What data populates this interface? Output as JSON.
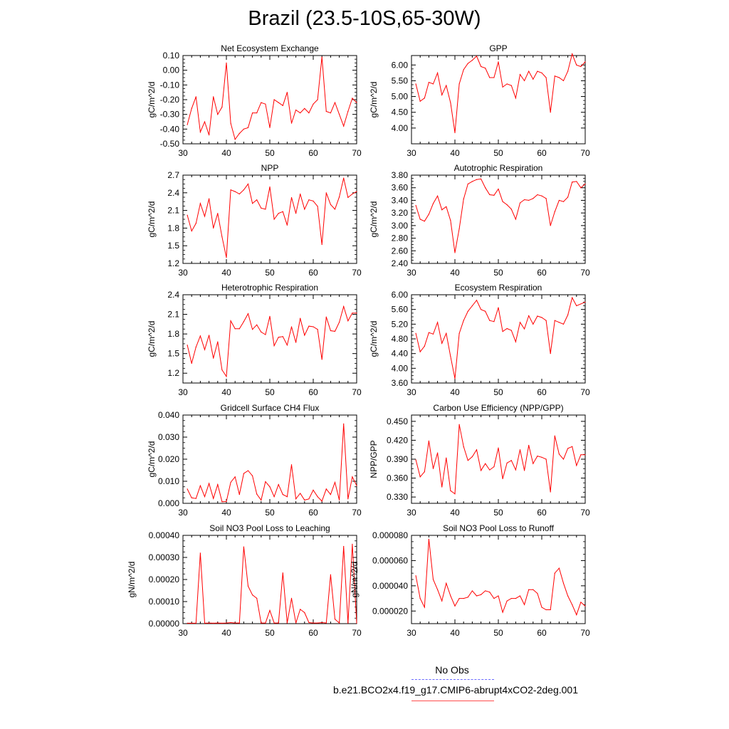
{
  "title": "Brazil (23.5-10S,65-30W)",
  "legend": {
    "obs_label": "No Obs",
    "model_label": "b.e21.BCO2x4.f19_g17.CMIP6-abrupt4xCO2-2deg.001",
    "obs_color": "#6a6aff",
    "model_color": "#ff0000"
  },
  "chart_data": [
    {
      "type": "line",
      "title": "Net Ecosystem Exchange",
      "ylabel": "gC/m^2/d",
      "xlim": [
        30,
        70
      ],
      "ylim": [
        -0.5,
        0.1
      ],
      "yticks": [
        -0.5,
        -0.4,
        -0.3,
        -0.2,
        -0.1,
        0.0,
        0.1
      ],
      "ytick_labels": [
        "-0.50",
        "-0.40",
        "-0.30",
        "-0.20",
        "-0.10",
        "0.00",
        "0.10"
      ],
      "xticks": [
        30,
        40,
        50,
        60,
        70
      ],
      "xtick_labels": [
        "30",
        "40",
        "50",
        "60",
        "70"
      ],
      "x": [
        31,
        32,
        33,
        34,
        35,
        36,
        37,
        38,
        39,
        40,
        41,
        42,
        43,
        44,
        45,
        46,
        47,
        48,
        49,
        50,
        51,
        52,
        53,
        54,
        55,
        56,
        57,
        58,
        59,
        60,
        61,
        62,
        63,
        64,
        65,
        66,
        67,
        68,
        69,
        70
      ],
      "y": [
        -0.37,
        -0.26,
        -0.18,
        -0.42,
        -0.35,
        -0.44,
        -0.18,
        -0.3,
        -0.25,
        0.05,
        -0.36,
        -0.47,
        -0.43,
        -0.4,
        -0.39,
        -0.29,
        -0.29,
        -0.22,
        -0.23,
        -0.39,
        -0.2,
        -0.22,
        -0.24,
        -0.15,
        -0.36,
        -0.27,
        -0.29,
        -0.26,
        -0.29,
        -0.23,
        -0.2,
        0.09,
        -0.28,
        -0.29,
        -0.22,
        -0.3,
        -0.38,
        -0.28,
        -0.19,
        -0.22
      ]
    },
    {
      "type": "line",
      "title": "GPP",
      "ylabel": "gC/m^2/d",
      "xlim": [
        30,
        70
      ],
      "ylim": [
        3.5,
        6.3
      ],
      "yticks": [
        4.0,
        4.5,
        5.0,
        5.5,
        6.0
      ],
      "ytick_labels": [
        "4.00",
        "4.50",
        "5.00",
        "5.50",
        "6.00"
      ],
      "xticks": [
        30,
        40,
        50,
        60,
        70
      ],
      "xtick_labels": [
        "30",
        "40",
        "50",
        "60",
        "70"
      ],
      "x": [
        31,
        32,
        33,
        34,
        35,
        36,
        37,
        38,
        39,
        40,
        41,
        42,
        43,
        44,
        45,
        46,
        47,
        48,
        49,
        50,
        51,
        52,
        53,
        54,
        55,
        56,
        57,
        58,
        59,
        60,
        61,
        62,
        63,
        64,
        65,
        66,
        67,
        68,
        69,
        70
      ],
      "y": [
        5.4,
        4.85,
        4.95,
        5.45,
        5.4,
        5.75,
        5.05,
        5.35,
        4.8,
        3.85,
        5.4,
        5.85,
        6.05,
        6.15,
        6.28,
        5.95,
        5.9,
        5.6,
        5.6,
        6.1,
        5.3,
        5.4,
        5.35,
        4.95,
        5.7,
        5.5,
        5.8,
        5.55,
        5.8,
        5.75,
        5.6,
        4.5,
        5.65,
        5.6,
        5.5,
        5.8,
        6.35,
        6.0,
        5.95,
        6.1
      ]
    },
    {
      "type": "line",
      "title": "NPP",
      "ylabel": "gC/m^2/d",
      "xlim": [
        30,
        70
      ],
      "ylim": [
        1.2,
        2.7
      ],
      "yticks": [
        1.2,
        1.5,
        1.8,
        2.1,
        2.4,
        2.7
      ],
      "ytick_labels": [
        "1.2",
        "1.5",
        "1.8",
        "2.1",
        "2.4",
        "2.7"
      ],
      "xticks": [
        30,
        40,
        50,
        60,
        70
      ],
      "xtick_labels": [
        "30",
        "40",
        "50",
        "60",
        "70"
      ],
      "x": [
        31,
        32,
        33,
        34,
        35,
        36,
        37,
        38,
        39,
        40,
        41,
        42,
        43,
        44,
        45,
        46,
        47,
        48,
        49,
        50,
        51,
        52,
        53,
        54,
        55,
        56,
        57,
        58,
        59,
        60,
        61,
        62,
        63,
        64,
        65,
        66,
        67,
        68,
        69,
        70
      ],
      "y": [
        2.02,
        1.75,
        1.88,
        2.22,
        2.0,
        2.3,
        1.8,
        2.05,
        1.65,
        1.3,
        2.45,
        2.42,
        2.38,
        2.45,
        2.55,
        2.22,
        2.28,
        2.14,
        2.12,
        2.5,
        1.95,
        2.05,
        2.08,
        1.85,
        2.32,
        2.05,
        2.38,
        2.12,
        2.28,
        2.26,
        2.17,
        1.52,
        2.4,
        2.2,
        2.12,
        2.33,
        2.65,
        2.32,
        2.38,
        2.42
      ]
    },
    {
      "type": "line",
      "title": "Autotrophic Respiration",
      "ylabel": "gC/m^2/d",
      "xlim": [
        30,
        70
      ],
      "ylim": [
        2.4,
        3.8
      ],
      "yticks": [
        2.4,
        2.6,
        2.8,
        3.0,
        3.2,
        3.4,
        3.6,
        3.8
      ],
      "ytick_labels": [
        "2.40",
        "2.60",
        "2.80",
        "3.00",
        "3.20",
        "3.40",
        "3.60",
        "3.80"
      ],
      "xticks": [
        30,
        40,
        50,
        60,
        70
      ],
      "xtick_labels": [
        "30",
        "40",
        "50",
        "60",
        "70"
      ],
      "x": [
        31,
        32,
        33,
        34,
        35,
        36,
        37,
        38,
        39,
        40,
        41,
        42,
        43,
        44,
        45,
        46,
        47,
        48,
        49,
        50,
        51,
        52,
        53,
        54,
        55,
        56,
        57,
        58,
        59,
        60,
        61,
        62,
        63,
        64,
        65,
        66,
        67,
        68,
        69,
        70
      ],
      "y": [
        3.32,
        3.1,
        3.07,
        3.18,
        3.35,
        3.47,
        3.25,
        3.3,
        3.08,
        2.57,
        2.95,
        3.42,
        3.66,
        3.7,
        3.73,
        3.74,
        3.6,
        3.49,
        3.48,
        3.58,
        3.38,
        3.33,
        3.26,
        3.1,
        3.36,
        3.41,
        3.4,
        3.43,
        3.49,
        3.47,
        3.43,
        3.0,
        3.22,
        3.4,
        3.38,
        3.45,
        3.69,
        3.7,
        3.6,
        3.66
      ]
    },
    {
      "type": "line",
      "title": "Heterotrophic Respiration",
      "ylabel": "gC/m^2/d",
      "xlim": [
        30,
        70
      ],
      "ylim": [
        1.05,
        2.4
      ],
      "yticks": [
        1.2,
        1.5,
        1.8,
        2.1,
        2.4
      ],
      "ytick_labels": [
        "1.2",
        "1.5",
        "1.8",
        "2.1",
        "2.4"
      ],
      "xticks": [
        30,
        40,
        50,
        60,
        70
      ],
      "xtick_labels": [
        "30",
        "40",
        "50",
        "60",
        "70"
      ],
      "x": [
        31,
        32,
        33,
        34,
        35,
        36,
        37,
        38,
        39,
        40,
        41,
        42,
        43,
        44,
        45,
        46,
        47,
        48,
        49,
        50,
        51,
        52,
        53,
        54,
        55,
        56,
        57,
        58,
        59,
        60,
        61,
        62,
        63,
        64,
        65,
        66,
        67,
        68,
        69,
        70
      ],
      "y": [
        1.63,
        1.35,
        1.6,
        1.77,
        1.56,
        1.78,
        1.43,
        1.68,
        1.25,
        1.15,
        2.0,
        1.88,
        1.88,
        1.99,
        2.11,
        1.87,
        1.94,
        1.83,
        1.79,
        2.07,
        1.62,
        1.75,
        1.76,
        1.63,
        1.91,
        1.67,
        2.04,
        1.78,
        1.92,
        1.91,
        1.87,
        1.41,
        2.06,
        1.85,
        1.84,
        1.98,
        2.22,
        2.0,
        2.12,
        2.12
      ]
    },
    {
      "type": "line",
      "title": "Ecosystem Respiration",
      "ylabel": "gC/m^2/d",
      "xlim": [
        30,
        70
      ],
      "ylim": [
        3.6,
        6.0
      ],
      "yticks": [
        3.6,
        4.0,
        4.4,
        4.8,
        5.2,
        5.6,
        6.0
      ],
      "ytick_labels": [
        "3.60",
        "4.00",
        "4.40",
        "4.80",
        "5.20",
        "5.60",
        "6.00"
      ],
      "xticks": [
        30,
        40,
        50,
        60,
        70
      ],
      "xtick_labels": [
        "30",
        "40",
        "50",
        "60",
        "70"
      ],
      "x": [
        31,
        32,
        33,
        34,
        35,
        36,
        37,
        38,
        39,
        40,
        41,
        42,
        43,
        44,
        45,
        46,
        47,
        48,
        49,
        50,
        51,
        52,
        53,
        54,
        55,
        56,
        57,
        58,
        59,
        60,
        61,
        62,
        63,
        64,
        65,
        66,
        67,
        68,
        69,
        70
      ],
      "y": [
        4.95,
        4.45,
        4.6,
        4.97,
        4.93,
        5.25,
        4.68,
        4.95,
        4.32,
        3.72,
        4.95,
        5.3,
        5.55,
        5.7,
        5.85,
        5.6,
        5.55,
        5.3,
        5.27,
        5.65,
        5.0,
        5.08,
        5.03,
        4.72,
        5.25,
        5.07,
        5.43,
        5.2,
        5.42,
        5.38,
        5.3,
        4.4,
        5.3,
        5.25,
        5.2,
        5.45,
        5.92,
        5.7,
        5.75,
        5.8
      ]
    },
    {
      "type": "line",
      "title": "Gridcell Surface CH4 Flux",
      "ylabel": "gC/m^2/d",
      "xlim": [
        30,
        70
      ],
      "ylim": [
        0.0,
        0.04
      ],
      "yticks": [
        0.0,
        0.01,
        0.02,
        0.03,
        0.04
      ],
      "ytick_labels": [
        "0.000",
        "0.010",
        "0.020",
        "0.030",
        "0.040"
      ],
      "xticks": [
        30,
        40,
        50,
        60,
        70
      ],
      "xtick_labels": [
        "30",
        "40",
        "50",
        "60",
        "70"
      ],
      "x": [
        31,
        32,
        33,
        34,
        35,
        36,
        37,
        38,
        39,
        40,
        41,
        42,
        43,
        44,
        45,
        46,
        47,
        48,
        49,
        50,
        51,
        52,
        53,
        54,
        55,
        56,
        57,
        58,
        59,
        60,
        61,
        62,
        63,
        64,
        65,
        66,
        67,
        68,
        69,
        70
      ],
      "y": [
        0.0065,
        0.0025,
        0.0022,
        0.008,
        0.003,
        0.009,
        0.0022,
        0.0085,
        0.0007,
        0.0008,
        0.0095,
        0.012,
        0.004,
        0.0135,
        0.0148,
        0.0125,
        0.0042,
        0.0015,
        0.0098,
        0.0075,
        0.003,
        0.0085,
        0.004,
        0.003,
        0.0175,
        0.002,
        0.0045,
        0.0015,
        0.002,
        0.006,
        0.003,
        0.001,
        0.0065,
        0.004,
        0.0095,
        0.0015,
        0.036,
        0.002,
        0.012,
        0.008
      ]
    },
    {
      "type": "line",
      "title": "Carbon Use Efficiency (NPP/GPP)",
      "ylabel": "NPP/GPP",
      "xlim": [
        30,
        70
      ],
      "ylim": [
        0.32,
        0.46
      ],
      "yticks": [
        0.33,
        0.36,
        0.39,
        0.42,
        0.45
      ],
      "ytick_labels": [
        "0.330",
        "0.360",
        "0.390",
        "0.420",
        "0.450"
      ],
      "xticks": [
        30,
        40,
        50,
        60,
        70
      ],
      "xtick_labels": [
        "30",
        "40",
        "50",
        "60",
        "70"
      ],
      "x": [
        31,
        32,
        33,
        34,
        35,
        36,
        37,
        38,
        39,
        40,
        41,
        42,
        43,
        44,
        45,
        46,
        47,
        48,
        49,
        50,
        51,
        52,
        53,
        54,
        55,
        56,
        57,
        58,
        59,
        60,
        61,
        62,
        63,
        64,
        65,
        66,
        67,
        68,
        69,
        70
      ],
      "y": [
        0.389,
        0.362,
        0.37,
        0.419,
        0.375,
        0.4,
        0.346,
        0.392,
        0.34,
        0.335,
        0.445,
        0.41,
        0.388,
        0.394,
        0.405,
        0.372,
        0.383,
        0.373,
        0.378,
        0.408,
        0.359,
        0.384,
        0.388,
        0.373,
        0.405,
        0.372,
        0.412,
        0.383,
        0.395,
        0.393,
        0.39,
        0.338,
        0.427,
        0.398,
        0.39,
        0.407,
        0.41,
        0.38,
        0.397,
        0.397
      ]
    },
    {
      "type": "line",
      "title": "Soil NO3 Pool Loss to Leaching",
      "ylabel": "gN/m^2/d",
      "xlim": [
        30,
        70
      ],
      "ylim": [
        0.0,
        0.0004
      ],
      "yticks": [
        0.0,
        0.0001,
        0.0002,
        0.0003,
        0.0004
      ],
      "ytick_labels": [
        "0.00000",
        "0.00010",
        "0.00020",
        "0.00030",
        "0.00040"
      ],
      "xticks": [
        30,
        40,
        50,
        60,
        70
      ],
      "xtick_labels": [
        "30",
        "40",
        "50",
        "60",
        "70"
      ],
      "x": [
        31,
        32,
        33,
        34,
        35,
        36,
        37,
        38,
        39,
        40,
        41,
        42,
        43,
        44,
        45,
        46,
        47,
        48,
        49,
        50,
        51,
        52,
        53,
        54,
        55,
        56,
        57,
        58,
        59,
        60,
        61,
        62,
        63,
        64,
        65,
        66,
        67,
        68,
        69,
        70
      ],
      "y": [
        2e-06,
        2e-06,
        2e-06,
        0.00032,
        2e-06,
        3e-06,
        2e-06,
        3e-06,
        2e-06,
        3e-06,
        5e-06,
        3e-06,
        3e-06,
        0.000348,
        0.00017,
        0.00013,
        0.000115,
        3e-06,
        3e-06,
        6e-05,
        3e-06,
        3e-06,
        0.00023,
        3e-06,
        0.000115,
        3e-06,
        6.5e-05,
        5e-05,
        5e-06,
        3e-06,
        3e-06,
        5e-06,
        3e-06,
        0.000222,
        2e-05,
        3e-06,
        0.00035,
        2e-06,
        0.00036,
        3e-06
      ]
    },
    {
      "type": "line",
      "title": "Soil NO3 Pool Loss to Runoff",
      "ylabel": "gN/m^2/d",
      "xlim": [
        30,
        70
      ],
      "ylim": [
        1e-05,
        8e-05
      ],
      "yticks": [
        2e-05,
        4e-05,
        6e-05,
        8e-05
      ],
      "ytick_labels": [
        "0.000020",
        "0.000040",
        "0.000060",
        "0.000080"
      ],
      "xticks": [
        30,
        40,
        50,
        60,
        70
      ],
      "xtick_labels": [
        "30",
        "40",
        "50",
        "60",
        "70"
      ],
      "x": [
        31,
        32,
        33,
        34,
        35,
        36,
        37,
        38,
        39,
        40,
        41,
        42,
        43,
        44,
        45,
        46,
        47,
        48,
        49,
        50,
        51,
        52,
        53,
        54,
        55,
        56,
        57,
        58,
        59,
        60,
        61,
        62,
        63,
        64,
        65,
        66,
        67,
        68,
        69,
        70
      ],
      "y": [
        4.8e-05,
        3e-05,
        2.3e-05,
        7.7e-05,
        4.5e-05,
        3.7e-05,
        2.8e-05,
        4.2e-05,
        3.2e-05,
        2.4e-05,
        3e-05,
        3e-05,
        3.1e-05,
        3.6e-05,
        3.2e-05,
        3.3e-05,
        3.6e-05,
        3.5e-05,
        3e-05,
        3.2e-05,
        1.9e-05,
        2.8e-05,
        3e-05,
        3e-05,
        3.2e-05,
        2.5e-05,
        3.7e-05,
        3.7e-05,
        3.4e-05,
        2.3e-05,
        2.1e-05,
        2.1e-05,
        5e-05,
        5.4e-05,
        4.2e-05,
        3.2e-05,
        2.5e-05,
        1.7e-05,
        2.7e-05,
        2.4e-05
      ]
    }
  ]
}
